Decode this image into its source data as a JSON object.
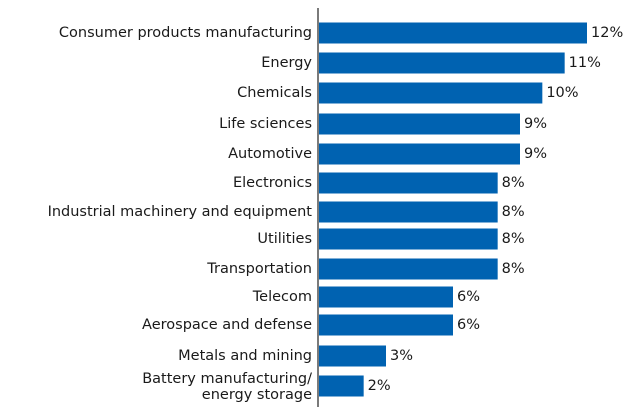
{
  "chart_data": {
    "type": "bar",
    "orientation": "horizontal",
    "categories": [
      "Consumer products manufacturing",
      "Energy",
      "Chemicals",
      "Life sciences",
      "Automotive",
      "Electronics",
      "Industrial machinery and equipment",
      "Utilities",
      "Transportation",
      "Telecom",
      "Aerospace and defense",
      "Metals and mining",
      "Battery manufacturing/ energy storage"
    ],
    "values": [
      12,
      11,
      10,
      9,
      9,
      8,
      8,
      8,
      8,
      6,
      6,
      3,
      2
    ],
    "value_labels": [
      "12%",
      "11%",
      "10%",
      "9%",
      "9%",
      "8%",
      "8%",
      "8%",
      "8%",
      "6%",
      "6%",
      "3%",
      "2%"
    ],
    "units": "%",
    "xlim": [
      0,
      12
    ],
    "grid": false,
    "legend": "none",
    "bar_color": "#0062b1",
    "axis_color": "#222222",
    "text_color": "#1a1a1a"
  }
}
